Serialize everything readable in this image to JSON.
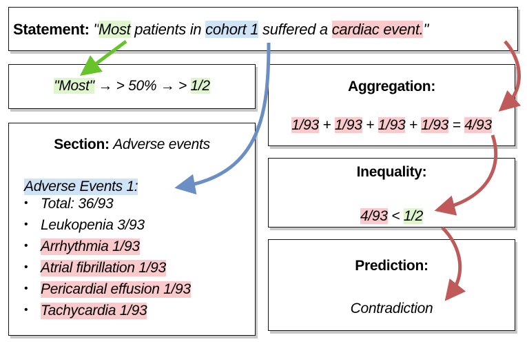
{
  "statement": {
    "label": "Statement:",
    "quote_open": "\"",
    "most": "Most",
    "text1": " patients in ",
    "cohort": "cohort 1",
    "text2": " suffered a ",
    "cardiac": "cardiac event.",
    "quote_close": "\""
  },
  "most_box": {
    "most": "\"Most\"",
    "mid": " → > 50% → > ",
    "half": "1/2"
  },
  "aggregation": {
    "title": "Aggregation:",
    "terms": [
      "1/93",
      "1/93",
      "1/93",
      "1/93"
    ],
    "plus": " + ",
    "equals": " = ",
    "result": "4/93"
  },
  "inequality": {
    "title": "Inequality:",
    "left": "4/93",
    "op": " < ",
    "right": "1/2"
  },
  "prediction": {
    "title": "Prediction:",
    "value": "Contradiction"
  },
  "section": {
    "label": "Section:",
    "name": "Adverse events",
    "heading": "Adverse Events 1:",
    "bullet": "•",
    "items": [
      {
        "text": "Total: 36/93",
        "highlight": false
      },
      {
        "text": "Leukopenia 3/93",
        "highlight": false
      },
      {
        "text": "Arrhythmia 1/93",
        "highlight": true
      },
      {
        "text": "Atrial fibrillation 1/93",
        "highlight": true
      },
      {
        "text": "Pericardial effusion 1/93",
        "highlight": true
      },
      {
        "text": "Tachycardia 1/93",
        "highlight": true
      }
    ]
  },
  "colors": {
    "green_arrow": "#66c42a",
    "blue_arrow": "#6b8fc4",
    "red_arrow": "#c05a5a",
    "green_highlight": "#dff5cc",
    "blue_highlight": "#cfe3f7",
    "red_highlight": "#f9c9cc"
  }
}
